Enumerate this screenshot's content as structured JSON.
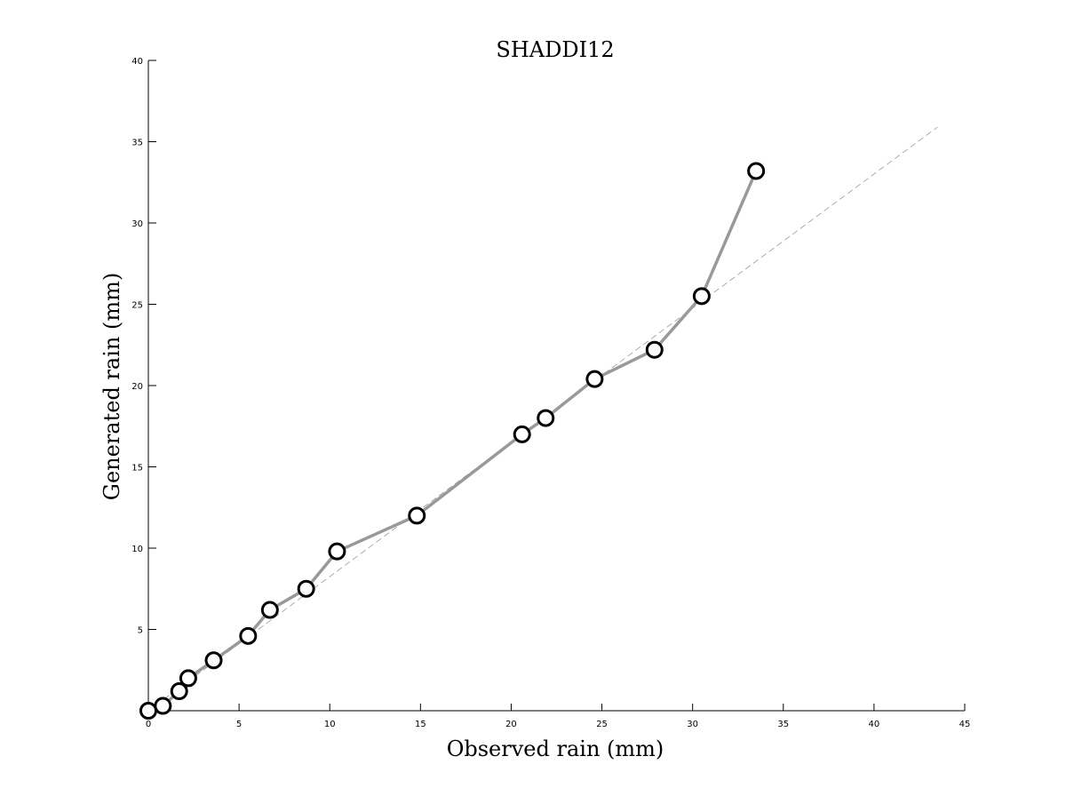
{
  "chart_data": {
    "type": "scatter",
    "title": "SHADDI12",
    "xlabel": "Observed rain (mm)",
    "ylabel": "Generated rain (mm)",
    "xlim": [
      0,
      45
    ],
    "ylim": [
      0,
      40
    ],
    "xticks": [
      0,
      5,
      10,
      15,
      20,
      25,
      30,
      35,
      40,
      45
    ],
    "yticks": [
      5,
      10,
      15,
      20,
      25,
      30,
      35,
      40
    ],
    "grid": false,
    "legend": "none",
    "colors": {
      "series_line": "#999999",
      "marker_edge": "#000000",
      "marker_fill": "#ffffff",
      "reference_line": "#999999",
      "axis": "#000000"
    },
    "reference_line": {
      "style": "dashed",
      "x": [
        0,
        43.5
      ],
      "y": [
        0,
        35.9
      ]
    },
    "series": [
      {
        "x": [
          0.0,
          0.8,
          1.7,
          2.2,
          3.6,
          5.5,
          6.7,
          8.7,
          10.4,
          14.8,
          20.6,
          21.9,
          24.6,
          27.9,
          30.5,
          33.5
        ],
        "y": [
          0.0,
          0.3,
          1.2,
          2.0,
          3.1,
          4.6,
          6.2,
          7.5,
          9.8,
          12.0,
          17.0,
          18.0,
          20.4,
          22.2,
          25.5,
          33.2
        ]
      }
    ]
  }
}
